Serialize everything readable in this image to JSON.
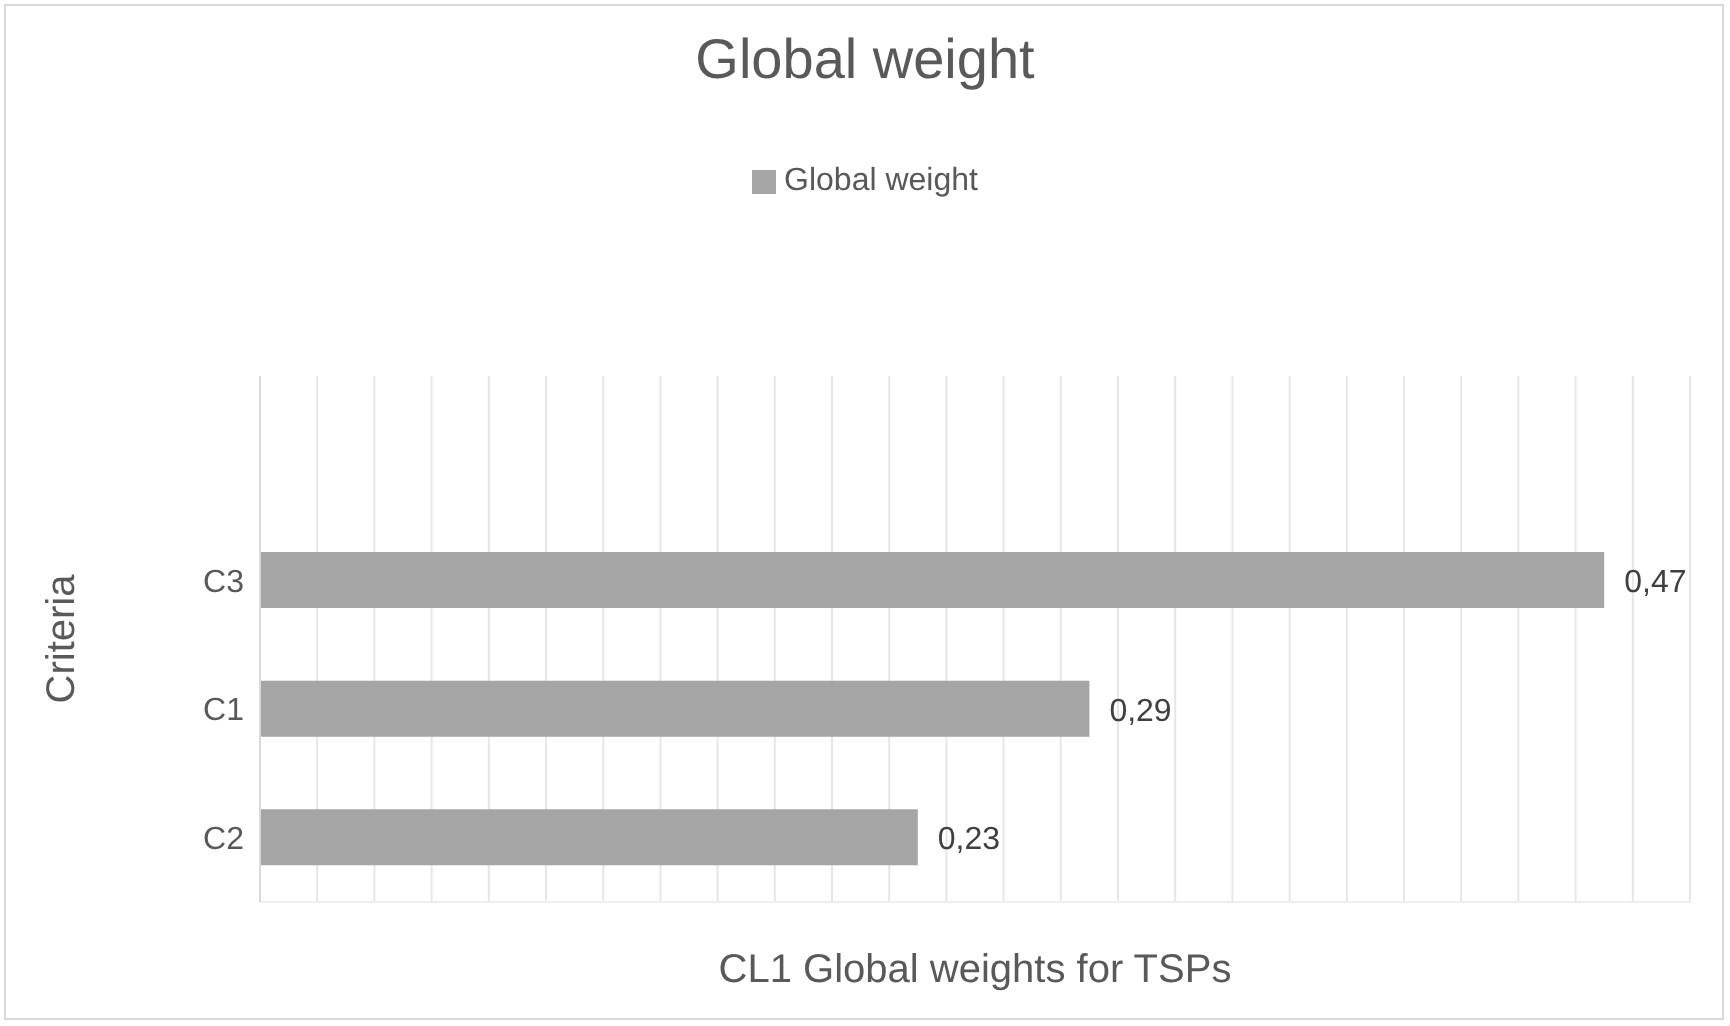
{
  "chart_data": {
    "type": "bar",
    "orientation": "horizontal",
    "title": "Global weight",
    "xlabel": "CL1 Global weights for TSPs",
    "ylabel": "Criteria",
    "categories": [
      "C3",
      "C1",
      "C2"
    ],
    "series": [
      {
        "name": "Global weight",
        "color": "#a5a5a5",
        "values": [
          0.47,
          0.29,
          0.23
        ],
        "value_labels": [
          "0,47",
          "0,29",
          "0,23"
        ]
      }
    ],
    "xlim": [
      0,
      0.5
    ],
    "xticks": [
      {
        "value": 0,
        "label": null
      },
      {
        "value": 0.02,
        "label": null
      },
      {
        "value": 0.04,
        "label": null
      },
      {
        "value": 0.06,
        "label": null
      },
      {
        "value": 0.08,
        "label": null
      },
      {
        "value": 0.1,
        "label": null
      },
      {
        "value": 0.12,
        "label": null
      },
      {
        "value": 0.14,
        "label": null
      },
      {
        "value": 0.16,
        "label": null
      },
      {
        "value": 0.18,
        "label": null
      },
      {
        "value": 0.2,
        "label": null
      },
      {
        "value": 0.22,
        "label": null
      },
      {
        "value": 0.24,
        "label": null
      },
      {
        "value": 0.26,
        "label": null
      },
      {
        "value": 0.28,
        "label": null
      },
      {
        "value": 0.3,
        "label": null
      },
      {
        "value": 0.32,
        "label": null
      },
      {
        "value": 0.34,
        "label": null
      },
      {
        "value": 0.36,
        "label": null
      },
      {
        "value": 0.38,
        "label": null
      },
      {
        "value": 0.4,
        "label": null
      },
      {
        "value": 0.42,
        "label": null
      },
      {
        "value": 0.44,
        "label": null
      },
      {
        "value": 0.46,
        "label": null
      },
      {
        "value": 0.48,
        "label": null
      },
      {
        "value": 0.5,
        "label": null
      }
    ],
    "grid": "x",
    "legend": "top",
    "tick_labels": "y"
  }
}
